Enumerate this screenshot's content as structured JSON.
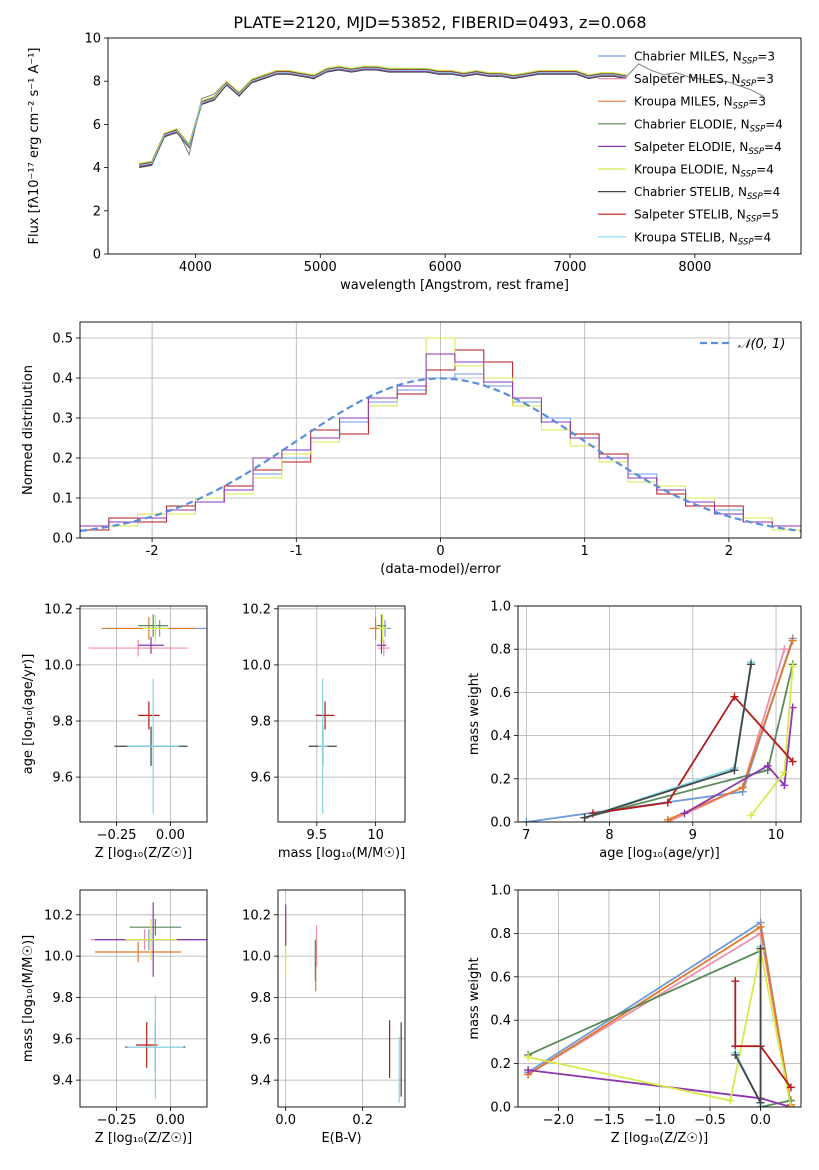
{
  "figure": {
    "title": "PLATE=2120, MJD=53852, FIBERID=0493, z=0.068"
  },
  "series_colors": {
    "Chabrier MILES": "#6f9bd8",
    "Salpeter MILES": "#f08ca8",
    "Kroupa MILES": "#e0782a",
    "Chabrier ELODIE": "#5a8a5a",
    "Salpeter ELODIE": "#8e35b0",
    "Kroupa ELODIE": "#d6ea4a",
    "Chabrier STELIB": "#444444",
    "Salpeter STELIB": "#b51a1a",
    "Kroupa STELIB": "#7fd8e8"
  },
  "chart_data": [
    {
      "id": "spectrum",
      "type": "line",
      "title": "PLATE=2120, MJD=53852, FIBERID=0493, z=0.068",
      "xlabel": "wavelength [Angstrom, rest frame]",
      "ylabel": "Flux [fλ10⁻¹⁷ erg cm⁻² s⁻¹ A⁻¹]",
      "xlim": [
        3300,
        8850
      ],
      "ylim": [
        0,
        10
      ],
      "xticks": [
        4000,
        5000,
        6000,
        7000,
        8000
      ],
      "yticks": [
        0,
        2,
        4,
        6,
        8,
        10
      ],
      "grid": false,
      "legend_position": "top-right",
      "legend": [
        {
          "name": "Chabrier MILES",
          "nssp": "3"
        },
        {
          "name": "Salpeter MILES",
          "nssp": "3"
        },
        {
          "name": "Kroupa MILES",
          "nssp": "3"
        },
        {
          "name": "Chabrier ELODIE",
          "nssp": "4"
        },
        {
          "name": "Salpeter ELODIE",
          "nssp": "4"
        },
        {
          "name": "Kroupa ELODIE",
          "nssp": "4"
        },
        {
          "name": "Chabrier STELIB",
          "nssp": "4"
        },
        {
          "name": "Salpeter STELIB",
          "nssp": "5"
        },
        {
          "name": "Kroupa STELIB",
          "nssp": "4"
        }
      ],
      "data_color": "#808080",
      "data": {
        "x": [
          3550,
          3650,
          3750,
          3850,
          3950,
          4050,
          4150,
          4250,
          4350,
          4450,
          4550,
          4650,
          4750,
          4850,
          4950,
          5050,
          5150,
          5250,
          5350,
          5450,
          5550,
          5650,
          5750,
          5850,
          5950,
          6050,
          6150,
          6250,
          6350,
          6450,
          6550,
          6650,
          6750,
          6850,
          6950,
          7050,
          7150,
          7250,
          7350,
          7450,
          7550,
          7650,
          7750,
          7850,
          7950,
          8050,
          8150,
          8250,
          8350,
          8450,
          8550
        ],
        "y": [
          4.0,
          4.1,
          5.4,
          5.8,
          4.6,
          7.2,
          7.4,
          8.0,
          7.3,
          8.1,
          8.3,
          8.5,
          8.4,
          8.3,
          8.1,
          8.6,
          8.7,
          8.5,
          8.6,
          8.7,
          8.6,
          8.5,
          8.6,
          8.5,
          8.4,
          8.5,
          8.3,
          8.4,
          8.3,
          8.3,
          8.2,
          8.3,
          8.4,
          8.4,
          8.5,
          8.4,
          8.2,
          8.4,
          8.3,
          8.2,
          8.8,
          8.5,
          8.3,
          8.4,
          8.2,
          8.1,
          8.0,
          8.0,
          7.8,
          7.6,
          7.3
        ]
      },
      "model_color": "#7fd8e8",
      "model": {
        "x": [
          3550,
          3650,
          3750,
          3850,
          3950,
          4050,
          4150,
          4250,
          4350,
          4450,
          4550,
          4650,
          4750,
          4850,
          4950,
          5050,
          5150,
          5250,
          5350,
          5450,
          5550,
          5650,
          5750,
          5850,
          5950,
          6050,
          6150,
          6250,
          6350,
          6450,
          6550,
          6650,
          6750,
          6850,
          6950,
          7050,
          7150,
          7250,
          7350,
          7450
        ],
        "y": [
          4.1,
          4.2,
          5.5,
          5.7,
          5.0,
          7.0,
          7.2,
          7.9,
          7.4,
          8.0,
          8.2,
          8.4,
          8.4,
          8.3,
          8.2,
          8.5,
          8.6,
          8.5,
          8.6,
          8.6,
          8.5,
          8.5,
          8.5,
          8.5,
          8.4,
          8.4,
          8.3,
          8.4,
          8.3,
          8.3,
          8.2,
          8.3,
          8.4,
          8.4,
          8.4,
          8.4,
          8.2,
          8.3,
          8.3,
          8.2
        ]
      }
    },
    {
      "id": "residuals",
      "type": "area",
      "xlabel": "(data-model)/error",
      "ylabel": "Normed distribution",
      "xlim": [
        -2.5,
        2.5
      ],
      "ylim": [
        0,
        0.54
      ],
      "xticks": [
        -2,
        -1,
        0,
        1,
        2
      ],
      "yticks": [
        0.0,
        0.1,
        0.2,
        0.3,
        0.4,
        0.5
      ],
      "grid": true,
      "legend_position": "top-right",
      "legend": [
        {
          "name": "𝒩(0, 1)",
          "style": "dashed",
          "color": "#5b8fd8"
        }
      ],
      "bin_edges": [
        -2.5,
        -2.3,
        -2.1,
        -1.9,
        -1.7,
        -1.5,
        -1.3,
        -1.1,
        -0.9,
        -0.7,
        -0.5,
        -0.3,
        -0.1,
        0.1,
        0.3,
        0.5,
        0.7,
        0.9,
        1.1,
        1.3,
        1.5,
        1.7,
        1.9,
        2.1,
        2.3,
        2.5
      ],
      "series": [
        {
          "name": "Chabrier MILES",
          "values": [
            0.03,
            0.04,
            0.05,
            0.07,
            0.09,
            0.12,
            0.16,
            0.2,
            0.25,
            0.29,
            0.34,
            0.37,
            0.4,
            0.41,
            0.38,
            0.34,
            0.3,
            0.25,
            0.2,
            0.16,
            0.12,
            0.09,
            0.07,
            0.05,
            0.03
          ]
        },
        {
          "name": "Salpeter STELIB",
          "values": [
            0.02,
            0.05,
            0.04,
            0.08,
            0.09,
            0.13,
            0.17,
            0.19,
            0.27,
            0.26,
            0.35,
            0.36,
            0.42,
            0.47,
            0.44,
            0.33,
            0.29,
            0.26,
            0.21,
            0.15,
            0.11,
            0.08,
            0.08,
            0.04,
            0.03
          ]
        },
        {
          "name": "Kroupa ELODIE",
          "values": [
            0.03,
            0.03,
            0.06,
            0.06,
            0.1,
            0.11,
            0.15,
            0.21,
            0.24,
            0.3,
            0.33,
            0.38,
            0.5,
            0.43,
            0.4,
            0.33,
            0.27,
            0.23,
            0.19,
            0.14,
            0.13,
            0.1,
            0.06,
            0.05,
            0.02
          ]
        },
        {
          "name": "Salpeter ELODIE",
          "values": [
            0.03,
            0.04,
            0.05,
            0.07,
            0.09,
            0.12,
            0.2,
            0.22,
            0.25,
            0.3,
            0.35,
            0.38,
            0.46,
            0.44,
            0.39,
            0.35,
            0.29,
            0.25,
            0.2,
            0.15,
            0.12,
            0.09,
            0.06,
            0.04,
            0.03
          ]
        }
      ]
    },
    {
      "id": "age_vs_Z",
      "type": "scatter",
      "xlabel": "Z [log₁₀(Z/Z☉)]",
      "ylabel": "age  [log₁₀(age/yr)]",
      "xlim": [
        -0.42,
        0.17
      ],
      "ylim": [
        9.44,
        10.21
      ],
      "xticks": [
        -0.25,
        0.0
      ],
      "xtick_labels": [
        "−0.25",
        "0.00"
      ],
      "yticks": [
        9.6,
        9.8,
        10.0,
        10.2
      ],
      "grid": true,
      "points": [
        {
          "series": "Chabrier MILES",
          "x": -0.05,
          "xerr": 0.22,
          "y": 10.13,
          "yerr": 0.03
        },
        {
          "series": "Salpeter MILES",
          "x": -0.15,
          "xerr": 0.23,
          "y": 10.06,
          "yerr": 0.03
        },
        {
          "series": "Kroupa MILES",
          "x": -0.1,
          "xerr": 0.22,
          "y": 10.13,
          "yerr": 0.04
        },
        {
          "series": "Chabrier ELODIE",
          "x": -0.08,
          "xerr": 0.07,
          "y": 10.14,
          "yerr": 0.04
        },
        {
          "series": "Salpeter ELODIE",
          "x": -0.09,
          "xerr": 0.06,
          "y": 10.07,
          "yerr": 0.03
        },
        {
          "series": "Kroupa ELODIE",
          "x": -0.07,
          "xerr": 0.06,
          "y": 10.13,
          "yerr": 0.05
        },
        {
          "series": "Salpeter STELIB",
          "x": -0.1,
          "xerr": 0.05,
          "y": 9.82,
          "yerr": 0.05
        },
        {
          "series": "Chabrier STELIB",
          "x": -0.09,
          "xerr": 0.17,
          "y": 9.71,
          "yerr": 0.07
        },
        {
          "series": "Kroupa STELIB",
          "x": -0.08,
          "xerr": 0.12,
          "y": 9.71,
          "yerr": 0.24
        }
      ]
    },
    {
      "id": "age_vs_mass",
      "type": "scatter",
      "xlabel": "mass [log₁₀(M/M☉)]",
      "xlim": [
        9.17,
        10.25
      ],
      "ylim": [
        9.44,
        10.21
      ],
      "xticks": [
        9.5,
        10.0
      ],
      "yticks": [
        9.6,
        9.8,
        10.0,
        10.2
      ],
      "grid": true,
      "points": [
        {
          "series": "Chabrier MILES",
          "x": 10.08,
          "xerr": 0.05,
          "y": 10.13,
          "yerr": 0.03
        },
        {
          "series": "Salpeter MILES",
          "x": 10.07,
          "xerr": 0.05,
          "y": 10.06,
          "yerr": 0.03
        },
        {
          "series": "Kroupa MILES",
          "x": 10.0,
          "xerr": 0.05,
          "y": 10.13,
          "yerr": 0.04
        },
        {
          "series": "Chabrier ELODIE",
          "x": 10.05,
          "xerr": 0.04,
          "y": 10.14,
          "yerr": 0.04
        },
        {
          "series": "Salpeter ELODIE",
          "x": 10.05,
          "xerr": 0.04,
          "y": 10.07,
          "yerr": 0.03
        },
        {
          "series": "Kroupa ELODIE",
          "x": 10.06,
          "xerr": 0.04,
          "y": 10.13,
          "yerr": 0.05
        },
        {
          "series": "Salpeter STELIB",
          "x": 9.57,
          "xerr": 0.08,
          "y": 9.82,
          "yerr": 0.05
        },
        {
          "series": "Chabrier STELIB",
          "x": 9.55,
          "xerr": 0.12,
          "y": 9.71,
          "yerr": 0.07
        },
        {
          "series": "Kroupa STELIB",
          "x": 9.55,
          "xerr": 0.04,
          "y": 9.71,
          "yerr": 0.24
        }
      ]
    },
    {
      "id": "weight_vs_age",
      "type": "line",
      "xlabel": "age  [log₁₀(age/yr)]",
      "ylabel": "mass weight",
      "xlim": [
        6.9,
        10.3
      ],
      "ylim": [
        0,
        1
      ],
      "xticks": [
        7,
        8,
        9,
        10
      ],
      "yticks": [
        0.0,
        0.2,
        0.4,
        0.6,
        0.8,
        1.0
      ],
      "grid": true,
      "series": [
        {
          "name": "Chabrier MILES",
          "x": [
            7.0,
            9.6,
            10.2
          ],
          "y": [
            0.0,
            0.14,
            0.85
          ]
        },
        {
          "name": "Salpeter MILES",
          "x": [
            8.7,
            9.6,
            10.1
          ],
          "y": [
            0.0,
            0.16,
            0.8
          ]
        },
        {
          "name": "Kroupa MILES",
          "x": [
            8.7,
            9.6,
            10.2
          ],
          "y": [
            0.01,
            0.16,
            0.84
          ]
        },
        {
          "name": "Chabrier ELODIE",
          "x": [
            7.7,
            9.9,
            10.2
          ],
          "y": [
            0.02,
            0.24,
            0.73
          ]
        },
        {
          "name": "Salpeter ELODIE",
          "x": [
            8.9,
            9.9,
            10.1,
            10.2
          ],
          "y": [
            0.04,
            0.26,
            0.17,
            0.53
          ]
        },
        {
          "name": "Kroupa ELODIE",
          "x": [
            9.7,
            10.1,
            10.2
          ],
          "y": [
            0.03,
            0.23,
            0.72
          ]
        },
        {
          "name": "Salpeter STELIB",
          "x": [
            7.8,
            8.7,
            9.5,
            10.2
          ],
          "y": [
            0.04,
            0.09,
            0.58,
            0.28
          ]
        },
        {
          "name": "Kroupa STELIB",
          "x": [
            7.7,
            9.5,
            9.7
          ],
          "y": [
            0.02,
            0.25,
            0.74
          ]
        },
        {
          "name": "Chabrier STELIB",
          "x": [
            7.7,
            9.5,
            9.7
          ],
          "y": [
            0.02,
            0.24,
            0.73
          ]
        }
      ]
    },
    {
      "id": "mass_vs_Z",
      "type": "scatter",
      "xlabel": "Z [log₁₀(Z/Z☉)]",
      "ylabel": "mass [log₁₀(M/M☉)]",
      "xlim": [
        -0.42,
        0.17
      ],
      "ylim": [
        9.27,
        10.32
      ],
      "xticks": [
        -0.25,
        0.0
      ],
      "xtick_labels": [
        "−0.25",
        "0.00"
      ],
      "yticks": [
        9.4,
        9.6,
        9.8,
        10.0,
        10.2
      ],
      "grid": true,
      "points": [
        {
          "series": "Chabrier MILES",
          "x": -0.1,
          "xerr": 0.25,
          "y": 10.08,
          "yerr": 0.05
        },
        {
          "series": "Salpeter MILES",
          "x": -0.12,
          "xerr": 0.25,
          "y": 10.08,
          "yerr": 0.05
        },
        {
          "series": "Kroupa MILES",
          "x": -0.15,
          "xerr": 0.2,
          "y": 10.02,
          "yerr": 0.05
        },
        {
          "series": "Chabrier ELODIE",
          "x": -0.07,
          "xerr": 0.12,
          "y": 10.14,
          "yerr": 0.04
        },
        {
          "series": "Salpeter ELODIE",
          "x": -0.08,
          "xerr": 0.27,
          "y": 10.08,
          "yerr": 0.18
        },
        {
          "series": "Kroupa ELODIE",
          "x": -0.09,
          "xerr": 0.12,
          "y": 10.08,
          "yerr": 0.1
        },
        {
          "series": "Salpeter STELIB",
          "x": -0.11,
          "xerr": 0.05,
          "y": 9.57,
          "yerr": 0.11
        },
        {
          "series": "Chabrier STELIB",
          "x": -0.07,
          "xerr": 0.14,
          "y": 9.56,
          "yerr": 0.12
        },
        {
          "series": "Kroupa STELIB",
          "x": -0.07,
          "xerr": 0.13,
          "y": 9.56,
          "yerr": 0.25
        }
      ]
    },
    {
      "id": "mass_vs_EBV",
      "type": "scatter",
      "xlabel": "E(B-V)",
      "xlim": [
        -0.02,
        0.31
      ],
      "ylim": [
        9.27,
        10.32
      ],
      "xticks": [
        0.0,
        0.2
      ],
      "xtick_labels": [
        "0.0",
        "0.2"
      ],
      "yticks": [
        9.4,
        9.6,
        9.8,
        10.0,
        10.2
      ],
      "grid": true,
      "points": [
        {
          "series": "Kroupa ELODIE",
          "x": 0.0,
          "y": 10.05,
          "yerr": 0.15
        },
        {
          "series": "Salpeter ELODIE",
          "x": 0.0,
          "y": 10.15,
          "yerr": 0.1
        },
        {
          "series": "Salpeter MILES",
          "x": 0.08,
          "y": 10.05,
          "yerr": 0.1
        },
        {
          "series": "Kroupa MILES",
          "x": 0.078,
          "y": 9.95,
          "yerr": 0.12
        },
        {
          "series": "Chabrier ELODIE",
          "x": 0.077,
          "y": 9.98,
          "yerr": 0.1
        },
        {
          "series": "Salpeter STELIB",
          "x": 0.27,
          "y": 9.55,
          "yerr": 0.14
        },
        {
          "series": "Chabrier STELIB",
          "x": 0.3,
          "y": 9.5,
          "yerr": 0.18
        },
        {
          "series": "Kroupa STELIB",
          "x": 0.295,
          "y": 9.45,
          "yerr": 0.16
        }
      ]
    },
    {
      "id": "weight_vs_Z",
      "type": "line",
      "xlabel": "Z [log₁₀(Z/Z☉)]",
      "ylabel": "mass weight",
      "xlim": [
        -2.4,
        0.4
      ],
      "ylim": [
        0,
        1
      ],
      "xticks": [
        -2.0,
        -1.5,
        -1.0,
        -0.5,
        0.0
      ],
      "xtick_labels": [
        "−2.0",
        "−1.5",
        "−1.0",
        "−0.5",
        "0.0"
      ],
      "yticks": [
        0.0,
        0.2,
        0.4,
        0.6,
        0.8,
        1.0
      ],
      "grid": true,
      "series": [
        {
          "name": "Chabrier MILES",
          "x": [
            -2.3,
            0.0,
            0.3
          ],
          "y": [
            0.16,
            0.85,
            0.0
          ]
        },
        {
          "name": "Salpeter MILES",
          "x": [
            -2.3,
            0.0,
            0.3
          ],
          "y": [
            0.15,
            0.8,
            0.01
          ]
        },
        {
          "name": "Kroupa MILES",
          "x": [
            -2.3,
            0.0,
            0.3
          ],
          "y": [
            0.15,
            0.83,
            0.01
          ]
        },
        {
          "name": "Chabrier ELODIE",
          "x": [
            -2.3,
            0.0,
            0.0,
            0.3
          ],
          "y": [
            0.24,
            0.72,
            0.0,
            0.03
          ]
        },
        {
          "name": "Salpeter ELODIE",
          "x": [
            -2.3,
            0.0,
            0.3
          ],
          "y": [
            0.17,
            0.04,
            0.0
          ]
        },
        {
          "name": "Kroupa ELODIE",
          "x": [
            -2.3,
            -0.3,
            0.0,
            0.3
          ],
          "y": [
            0.23,
            0.03,
            0.72,
            0.0
          ]
        },
        {
          "name": "Salpeter STELIB",
          "x": [
            -0.25,
            -0.25,
            0.0,
            0.3
          ],
          "y": [
            0.58,
            0.28,
            0.28,
            0.09
          ]
        },
        {
          "name": "Kroupa STELIB",
          "x": [
            -0.25,
            0.0,
            0.0
          ],
          "y": [
            0.25,
            0.02,
            0.74
          ]
        },
        {
          "name": "Chabrier STELIB",
          "x": [
            -0.25,
            0.0,
            0.0
          ],
          "y": [
            0.24,
            0.02,
            0.73
          ]
        }
      ]
    }
  ]
}
